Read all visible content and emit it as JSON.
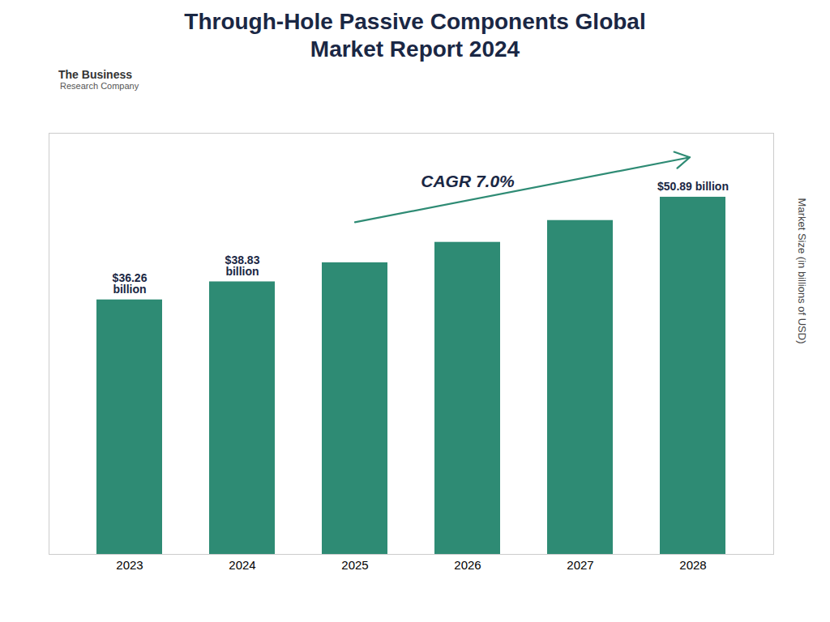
{
  "chart_data": {
    "type": "bar",
    "title": "Through-Hole Passive Components Global\nMarket Report 2024",
    "categories": [
      "2023",
      "2024",
      "2025",
      "2026",
      "2027",
      "2028"
    ],
    "values": [
      36.26,
      38.83,
      41.55,
      44.46,
      47.57,
      50.89
    ],
    "value_labels": [
      "$36.26\nbillion",
      "$38.83\nbillion",
      null,
      null,
      null,
      "$50.89 billion"
    ],
    "data_labels": true,
    "color": "#2e8b74",
    "ylabel": "Market Size (in billions of USD)",
    "ylim": [
      0,
      60
    ],
    "yticks": [],
    "grid": false,
    "tick_labels": "x",
    "annotations": [
      "CAGR 7.0%",
      "The Business",
      "Research Company"
    ]
  }
}
